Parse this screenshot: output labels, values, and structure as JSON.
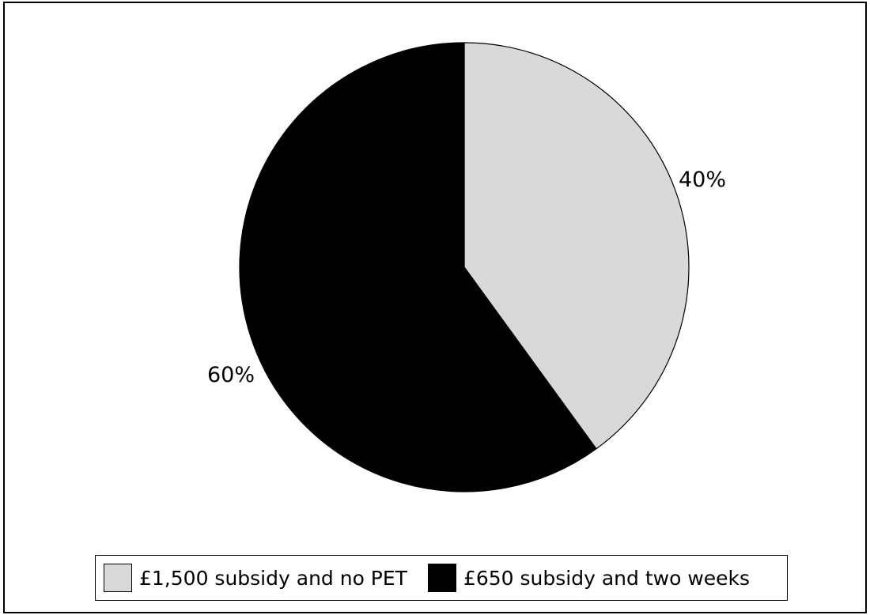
{
  "chart_data": {
    "type": "pie",
    "title": "",
    "slices": [
      {
        "name": "£1,500 subsidy and no PET",
        "value": 40,
        "label": "40%",
        "color": "#d9d9d9"
      },
      {
        "name": "£650 subsidy and two weeks",
        "value": 60,
        "label": "60%",
        "color": "#000000"
      }
    ],
    "start_angle": "12 o'clock",
    "direction": "clockwise",
    "legend": {
      "position": "bottom",
      "items": [
        {
          "label": "£1,500 subsidy and no PET",
          "color": "#d9d9d9"
        },
        {
          "label": "£650 subsidy and two weeks",
          "color": "#000000"
        }
      ]
    }
  }
}
